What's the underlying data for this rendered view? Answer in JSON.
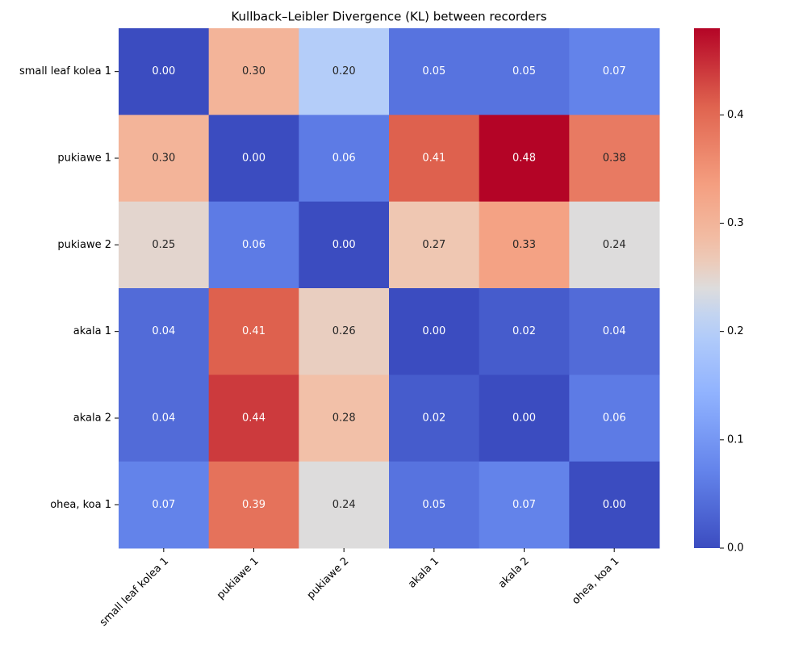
{
  "chart_data": {
    "type": "heatmap",
    "title": "Kullback–Leibler Divergence (KL) between recorders",
    "categories": [
      "small leaf kolea 1",
      "pukiawe 1",
      "pukiawe 2",
      "akala 1",
      "akala 2",
      "ohea, koa 1"
    ],
    "values": [
      [
        0.0,
        0.3,
        0.2,
        0.05,
        0.05,
        0.07
      ],
      [
        0.3,
        0.0,
        0.06,
        0.41,
        0.48,
        0.38
      ],
      [
        0.25,
        0.06,
        0.0,
        0.27,
        0.33,
        0.24
      ],
      [
        0.04,
        0.41,
        0.26,
        0.0,
        0.02,
        0.04
      ],
      [
        0.04,
        0.44,
        0.28,
        0.02,
        0.0,
        0.06
      ],
      [
        0.07,
        0.39,
        0.24,
        0.05,
        0.07,
        0.0
      ]
    ],
    "value_labels": [
      [
        "0.00",
        "0.30",
        "0.20",
        "0.05",
        "0.05",
        "0.07"
      ],
      [
        "0.30",
        "0.00",
        "0.06",
        "0.41",
        "0.48",
        "0.38"
      ],
      [
        "0.25",
        "0.06",
        "0.00",
        "0.27",
        "0.33",
        "0.24"
      ],
      [
        "0.04",
        "0.41",
        "0.26",
        "0.00",
        "0.02",
        "0.04"
      ],
      [
        "0.04",
        "0.44",
        "0.28",
        "0.02",
        "0.00",
        "0.06"
      ],
      [
        "0.07",
        "0.39",
        "0.24",
        "0.05",
        "0.07",
        "0.00"
      ]
    ],
    "colormap": "coolwarm",
    "clim": [
      0,
      0.48
    ],
    "cticks": [
      {
        "value": 0,
        "label": "0.0"
      },
      {
        "value": 0.1,
        "label": "0.1"
      },
      {
        "value": 0.2,
        "label": "0.2"
      },
      {
        "value": 0.3,
        "label": "0.3"
      },
      {
        "value": 0.4,
        "label": "0.4"
      }
    ]
  }
}
